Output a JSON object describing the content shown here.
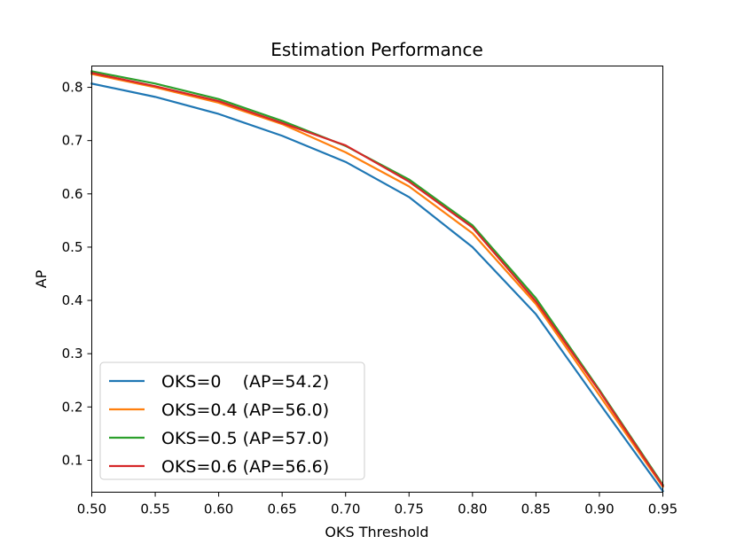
{
  "chart_data": {
    "type": "line",
    "title": "Estimation Performance",
    "xlabel": "OKS Threshold",
    "ylabel": "AP",
    "xlim": [
      0.5,
      0.95
    ],
    "ylim": [
      0.04,
      0.84
    ],
    "xticks": [
      0.5,
      0.55,
      0.6,
      0.65,
      0.7,
      0.75,
      0.8,
      0.85,
      0.9,
      0.95
    ],
    "xtick_labels": [
      "0.50",
      "0.55",
      "0.60",
      "0.65",
      "0.70",
      "0.75",
      "0.80",
      "0.85",
      "0.90",
      "0.95"
    ],
    "yticks": [
      0.1,
      0.2,
      0.3,
      0.4,
      0.5,
      0.6,
      0.7,
      0.8
    ],
    "ytick_labels": [
      "0.1",
      "0.2",
      "0.3",
      "0.4",
      "0.5",
      "0.6",
      "0.7",
      "0.8"
    ],
    "grid": false,
    "legend_position": "lower-left",
    "x": [
      0.5,
      0.55,
      0.6,
      0.65,
      0.7,
      0.75,
      0.8,
      0.85,
      0.9,
      0.95
    ],
    "series": [
      {
        "name": "OKS=0    (AP=54.2)",
        "color": "#1f77b4",
        "values": [
          0.807,
          0.782,
          0.75,
          0.709,
          0.66,
          0.594,
          0.5,
          0.374,
          0.207,
          0.042
        ]
      },
      {
        "name": "OKS=0.4 (AP=56.0)",
        "color": "#ff7f0e",
        "values": [
          0.825,
          0.8,
          0.771,
          0.731,
          0.678,
          0.614,
          0.526,
          0.393,
          0.222,
          0.05
        ]
      },
      {
        "name": "OKS=0.5 (AP=57.0)",
        "color": "#2ca02c",
        "values": [
          0.83,
          0.807,
          0.778,
          0.737,
          0.69,
          0.627,
          0.541,
          0.404,
          0.232,
          0.054
        ]
      },
      {
        "name": "OKS=0.6 (AP=56.6)",
        "color": "#d62728",
        "values": [
          0.827,
          0.802,
          0.774,
          0.733,
          0.691,
          0.623,
          0.537,
          0.398,
          0.23,
          0.052
        ]
      }
    ]
  }
}
